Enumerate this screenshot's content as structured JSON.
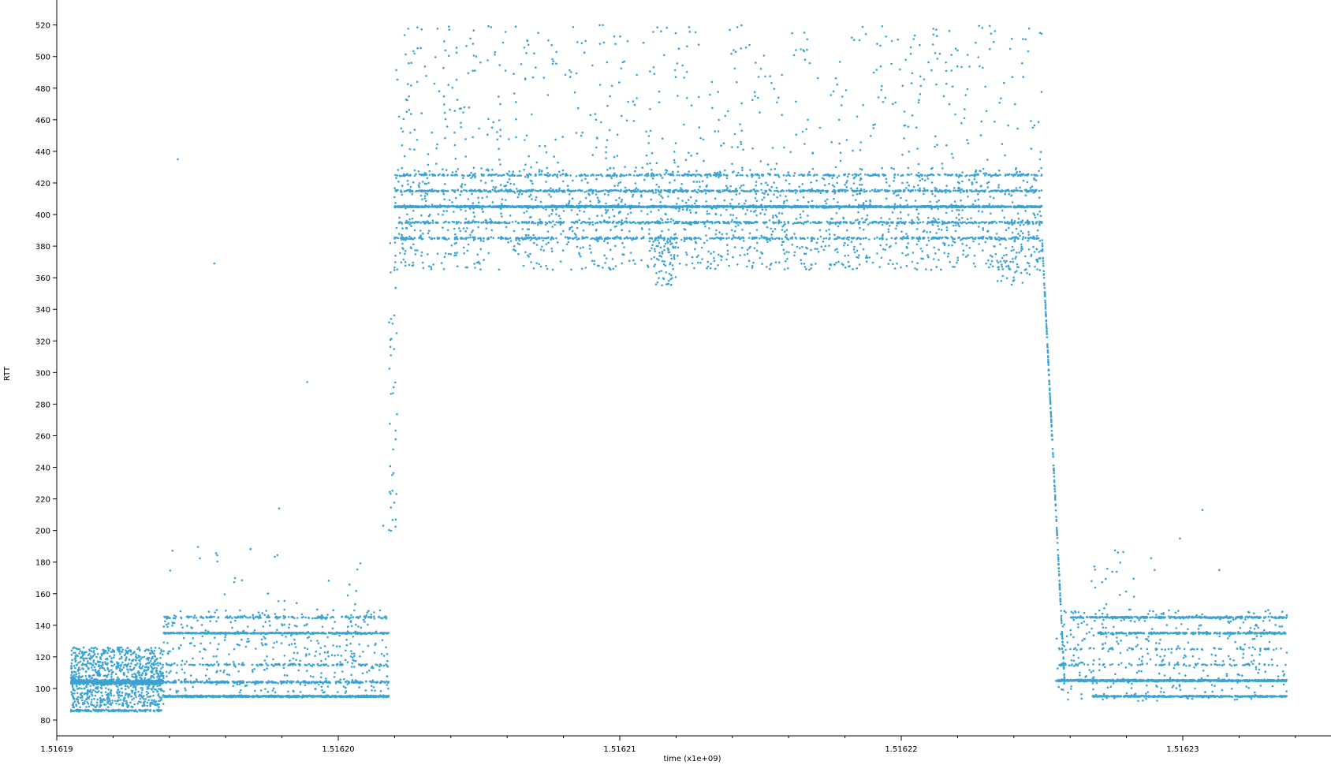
{
  "chart_data": {
    "type": "scatter",
    "xlabel": "time (x1e+09)",
    "ylabel": "RTT",
    "xlim": [
      1.5161895,
      1.5162348
    ],
    "ylim": [
      75,
      530
    ],
    "x_ticks": [
      {
        "value": 1.51619,
        "label": "1.51619"
      },
      {
        "value": 1.5162,
        "label": "1.51620"
      },
      {
        "value": 1.51621,
        "label": "1.51621"
      },
      {
        "value": 1.51622,
        "label": "1.51622"
      },
      {
        "value": 1.51623,
        "label": "1.51623"
      }
    ],
    "y_ticks": [
      80,
      100,
      120,
      140,
      160,
      180,
      200,
      220,
      240,
      260,
      280,
      300,
      320,
      340,
      360,
      380,
      400,
      420,
      440,
      460,
      480,
      500,
      520
    ],
    "grid": false,
    "legend": "none",
    "colors": {
      "point": "#3ba3d3",
      "axis": "#000000"
    },
    "series": [
      {
        "values_description_free": true,
        "x": [
          1.51619,
          1.516191,
          1.516192,
          1.516193,
          1.516194,
          1.516195,
          1.516196,
          1.516197,
          1.516198,
          1.516199,
          1.5162,
          1.516201,
          1.516202,
          1.516203,
          1.516204,
          1.516205,
          1.516206,
          1.516207,
          1.516208,
          1.516209,
          1.51621,
          1.516211,
          1.516212,
          1.516213,
          1.516214,
          1.516215,
          1.516216,
          1.516217,
          1.516218,
          1.516219,
          1.51622,
          1.516221,
          1.516222,
          1.516223,
          1.516224,
          1.516225,
          1.516226,
          1.516227,
          1.516228,
          1.516229,
          1.51623,
          1.516231,
          1.516232,
          1.516233
        ],
        "y": [
          105,
          104,
          106,
          95,
          95,
          95,
          95,
          95,
          95,
          95,
          95,
          95,
          405,
          405,
          405,
          405,
          405,
          405,
          405,
          405,
          405,
          405,
          385,
          405,
          405,
          405,
          405,
          405,
          405,
          405,
          405,
          405,
          405,
          395,
          380,
          300,
          105,
          105,
          105,
          105,
          95,
          95,
          95,
          95
        ]
      }
    ]
  }
}
